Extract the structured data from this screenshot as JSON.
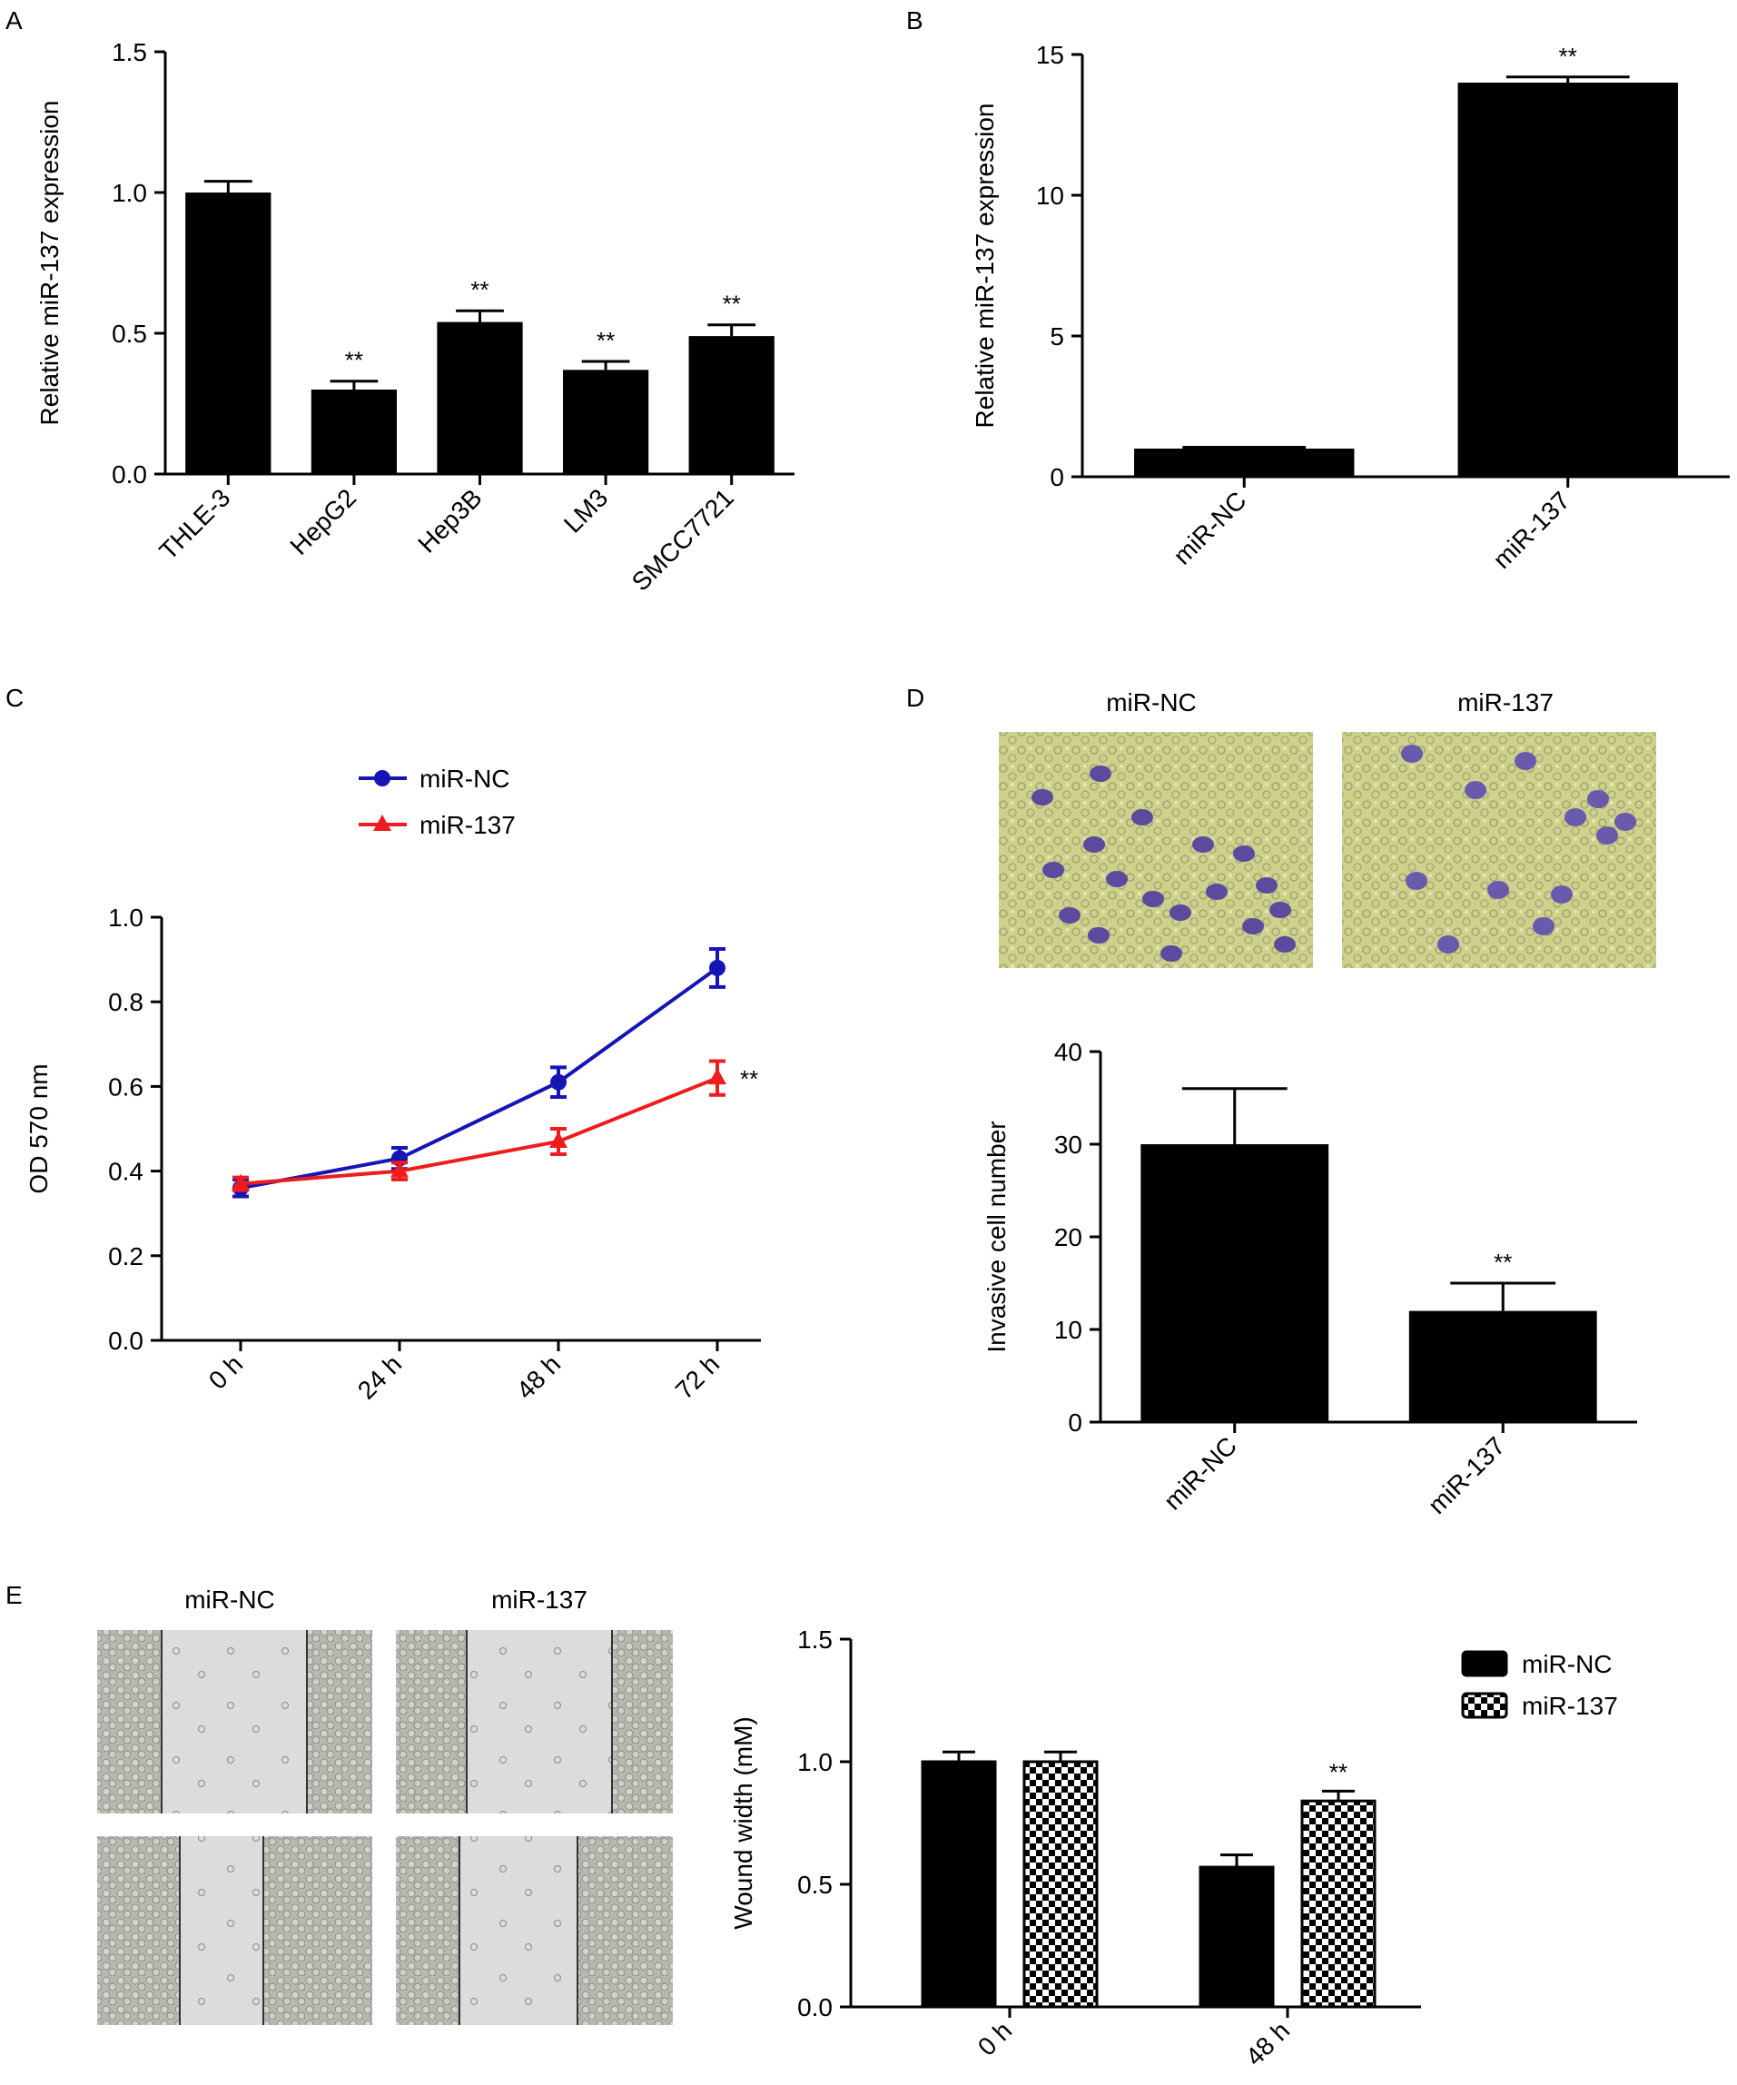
{
  "colors": {
    "black": "#000000",
    "blue": "#1515b5",
    "red": "#ee1c1c",
    "bg": "#ffffff"
  },
  "chart_data": [
    {
      "panel": "A",
      "type": "bar",
      "categories": [
        "THLE-3",
        "HepG2",
        "Hep3B",
        "LM3",
        "SMCC7721"
      ],
      "values": [
        1.0,
        0.3,
        0.54,
        0.37,
        0.49
      ],
      "errors": [
        0.04,
        0.03,
        0.04,
        0.03,
        0.04
      ],
      "annotations": [
        "",
        "**",
        "**",
        "**",
        "**"
      ],
      "ylabel": "Relative  miR-137 expression",
      "ylim": [
        0,
        1.5
      ],
      "yticks": [
        "0.0",
        "0.5",
        "1.0",
        "1.5"
      ],
      "color": "#000000"
    },
    {
      "panel": "B",
      "type": "bar",
      "categories": [
        "miR-NC",
        "miR-137"
      ],
      "values": [
        1.0,
        14.0
      ],
      "errors": [
        0.05,
        0.2
      ],
      "annotations": [
        "",
        "**"
      ],
      "ylabel": "Relative  miR-137 expression",
      "ylim": [
        0,
        15
      ],
      "yticks": [
        "0",
        "5",
        "10",
        "15"
      ],
      "color": "#000000"
    },
    {
      "panel": "C",
      "type": "line",
      "x": [
        "0 h",
        "24 h",
        "48 h",
        "72 h"
      ],
      "series": [
        {
          "name": "miR-NC",
          "values": [
            0.36,
            0.43,
            0.61,
            0.88
          ],
          "errors": [
            0.02,
            0.025,
            0.035,
            0.045
          ],
          "marker": "circle",
          "color": "#1515b5"
        },
        {
          "name": "miR-137",
          "values": [
            0.37,
            0.4,
            0.47,
            0.62
          ],
          "errors": [
            0.015,
            0.02,
            0.03,
            0.04
          ],
          "marker": "triangle",
          "color": "#ee1c1c"
        }
      ],
      "annotation": "**",
      "ylabel": "OD 570 nm",
      "ylim": [
        0,
        1.0
      ],
      "yticks": [
        "0.0",
        "0.2",
        "0.4",
        "0.6",
        "0.8",
        "1.0"
      ],
      "legend": "top"
    },
    {
      "panel": "D",
      "type": "bar",
      "image_labels": [
        "miR-NC",
        "miR-137"
      ],
      "categories": [
        "miR-NC",
        "miR-137"
      ],
      "values": [
        30,
        12
      ],
      "errors": [
        6,
        3
      ],
      "annotations": [
        "",
        "**"
      ],
      "ylabel": "Invasive cell number",
      "ylim": [
        0,
        40
      ],
      "yticks": [
        "0",
        "10",
        "20",
        "30",
        "40"
      ],
      "color": "#000000"
    },
    {
      "panel": "E",
      "type": "bar",
      "image_labels": [
        "miR-NC",
        "miR-137"
      ],
      "categories": [
        "0 h",
        "48 h"
      ],
      "series": [
        {
          "name": "miR-NC",
          "values": [
            1.0,
            0.57
          ],
          "errors": [
            0.04,
            0.05
          ],
          "pattern": "solid"
        },
        {
          "name": "miR-137",
          "values": [
            1.0,
            0.84
          ],
          "errors": [
            0.04,
            0.04
          ],
          "pattern": "checker"
        }
      ],
      "annotations": [
        "",
        "**"
      ],
      "ylabel": "Wound width (mM)",
      "ylim": [
        0,
        1.5
      ],
      "yticks": [
        "0.0",
        "0.5",
        "1.0",
        "1.5"
      ],
      "legend": "top-right"
    }
  ]
}
